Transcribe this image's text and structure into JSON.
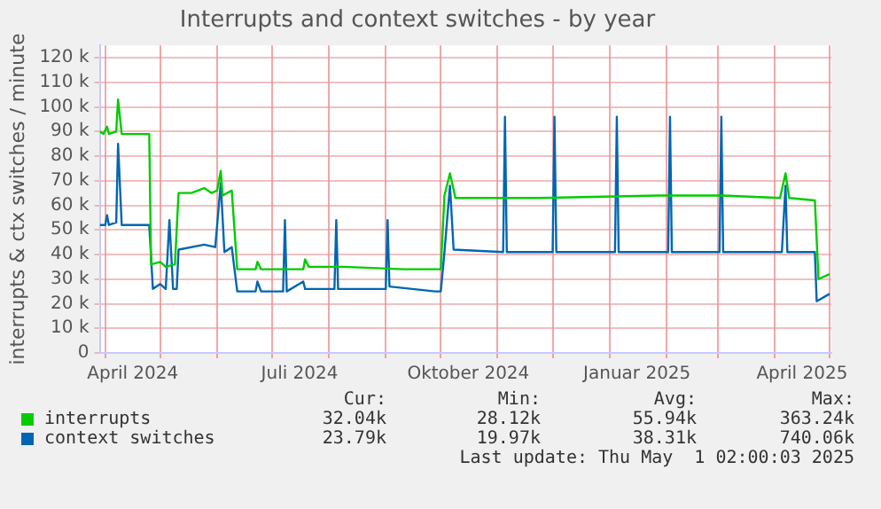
{
  "chart_data": {
    "type": "line",
    "title": "Interrupts and context switches - by year",
    "ylabel": "interrupts & ctx switches / minute",
    "xlim": [
      "2024-03-29",
      "2025-05-02"
    ],
    "xticks": [
      {
        "value": "2024-04-01",
        "label": null
      },
      {
        "value": "2024-04-16",
        "label": "April 2024"
      },
      {
        "value": "2024-05-01",
        "label": null
      },
      {
        "value": "2024-06-01",
        "label": null
      },
      {
        "value": "2024-07-01",
        "label": null
      },
      {
        "value": "2024-07-16",
        "label": "Juli 2024"
      },
      {
        "value": "2024-08-01",
        "label": null
      },
      {
        "value": "2024-09-01",
        "label": null
      },
      {
        "value": "2024-10-01",
        "label": null
      },
      {
        "value": "2024-10-16",
        "label": "Oktober 2024"
      },
      {
        "value": "2024-11-01",
        "label": null
      },
      {
        "value": "2024-12-01",
        "label": null
      },
      {
        "value": "2025-01-01",
        "label": null
      },
      {
        "value": "2025-01-16",
        "label": "Januar 2025"
      },
      {
        "value": "2025-02-01",
        "label": null
      },
      {
        "value": "2025-03-01",
        "label": null
      },
      {
        "value": "2025-04-01",
        "label": null
      },
      {
        "value": "2025-04-16",
        "label": "April 2025"
      },
      {
        "value": "2025-05-01",
        "label": null
      }
    ],
    "ylim": [
      0,
      125000
    ],
    "yticks": [
      0,
      {
        "value": 10000,
        "label": "10 k"
      },
      {
        "value": 20000,
        "label": "20 k"
      },
      {
        "value": 30000,
        "label": "30 k"
      },
      {
        "value": 40000,
        "label": "40 k"
      },
      {
        "value": 50000,
        "label": "50 k"
      },
      {
        "value": 60000,
        "label": "60 k"
      },
      {
        "value": 70000,
        "label": "70 k"
      },
      {
        "value": 80000,
        "label": "80 k"
      },
      {
        "value": 90000,
        "label": "90 k"
      },
      {
        "value": 100000,
        "label": "100 k"
      },
      {
        "value": 110000,
        "label": "110 k"
      },
      {
        "value": 120000,
        "label": "120 k"
      }
    ],
    "grid": true,
    "legend": "bottom",
    "marker": "none",
    "line_style": "solid",
    "series": [
      {
        "name": "interrupts",
        "color": "#00cc00",
        "x": [
          "2024-03-29",
          "2024-03-31",
          "2024-04-02",
          "2024-04-03",
          "2024-04-07",
          "2024-04-08",
          "2024-04-10",
          "2024-04-24",
          "2024-04-25",
          "2024-04-26",
          "2024-05-01",
          "2024-05-04",
          "2024-05-09",
          "2024-05-11",
          "2024-05-18",
          "2024-05-25",
          "2024-05-29",
          "2024-06-01",
          "2024-06-03",
          "2024-06-04",
          "2024-06-09",
          "2024-06-12",
          "2024-06-22",
          "2024-06-23",
          "2024-06-25",
          "2024-07-18",
          "2024-07-19",
          "2024-07-21",
          "2024-08-09",
          "2024-09-11",
          "2024-10-01",
          "2024-10-03",
          "2024-10-06",
          "2024-10-09",
          "2024-11-24",
          "2025-01-28",
          "2025-03-04",
          "2025-04-04",
          "2025-04-07",
          "2025-04-09",
          "2025-04-23",
          "2025-04-25",
          "2025-05-01"
        ],
        "values": [
          90000,
          89000,
          92000,
          89000,
          90000,
          103000,
          89000,
          89000,
          89000,
          36000,
          37000,
          35000,
          36000,
          65000,
          65000,
          67000,
          65000,
          66000,
          74000,
          64000,
          66000,
          34000,
          34000,
          37000,
          34000,
          34000,
          38000,
          35000,
          35000,
          34000,
          34000,
          64000,
          73000,
          63000,
          63000,
          64000,
          64000,
          63000,
          73000,
          63000,
          62000,
          30000,
          32000
        ]
      },
      {
        "name": "context switches",
        "color": "#0066b3",
        "x": [
          "2024-03-29",
          "2024-04-01",
          "2024-04-02",
          "2024-04-03",
          "2024-04-07",
          "2024-04-08",
          "2024-04-10",
          "2024-04-24",
          "2024-04-25",
          "2024-04-27",
          "2024-05-01",
          "2024-05-04",
          "2024-05-06",
          "2024-05-08",
          "2024-05-10",
          "2024-05-11",
          "2024-05-25",
          "2024-05-31",
          "2024-06-03",
          "2024-06-05",
          "2024-06-09",
          "2024-06-12",
          "2024-06-22",
          "2024-06-23",
          "2024-06-25",
          "2024-07-07",
          "2024-07-08",
          "2024-07-09",
          "2024-07-18",
          "2024-07-19",
          "2024-08-04",
          "2024-08-05",
          "2024-08-06",
          "2024-09-01",
          "2024-09-02",
          "2024-09-03",
          "2024-09-28",
          "2024-10-01",
          "2024-10-03",
          "2024-10-06",
          "2024-10-08",
          "2024-11-04",
          "2024-11-05",
          "2024-11-06",
          "2024-12-01",
          "2024-12-02",
          "2024-12-03",
          "2025-01-04",
          "2025-01-05",
          "2025-01-06",
          "2025-02-02",
          "2025-02-03",
          "2025-02-04",
          "2025-03-02",
          "2025-03-03",
          "2025-03-04",
          "2025-04-05",
          "2025-04-07",
          "2025-04-08",
          "2025-04-23",
          "2025-04-24",
          "2025-05-01"
        ],
        "values": [
          52000,
          52000,
          56000,
          52000,
          53000,
          85000,
          52000,
          52000,
          52000,
          26000,
          28000,
          26000,
          54000,
          26000,
          26000,
          42000,
          44000,
          43000,
          69000,
          41000,
          43000,
          25000,
          25000,
          29000,
          25000,
          25000,
          54000,
          25000,
          29000,
          26000,
          26000,
          54000,
          26000,
          26000,
          54000,
          27000,
          25000,
          25000,
          41000,
          68000,
          42000,
          41000,
          96000,
          41000,
          41000,
          96000,
          41000,
          41000,
          96000,
          41000,
          41000,
          96000,
          41000,
          41000,
          96000,
          41000,
          41000,
          68000,
          41000,
          41000,
          21000,
          24000
        ]
      }
    ],
    "annotations": [
      "Cur:",
      "Min:",
      "Avg:",
      "Max:",
      "32.04k",
      "28.12k",
      "55.94k",
      "363.24k",
      "23.79k",
      "19.97k",
      "38.31k",
      "740.06k",
      "Last update: Thu May  1 02:00:03 2025"
    ]
  }
}
